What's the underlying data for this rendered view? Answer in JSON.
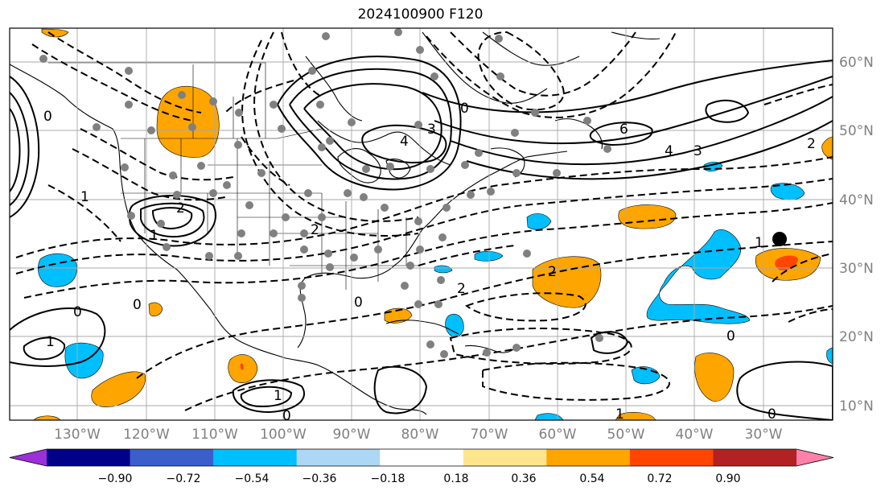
{
  "title": "2024100900 F120",
  "map": {
    "lon_labels": [
      "130°W",
      "120°W",
      "110°W",
      "100°W",
      "90°W",
      "80°W",
      "70°W",
      "60°W",
      "50°W",
      "40°W",
      "30°W"
    ],
    "lat_labels": [
      "60°N",
      "50°N",
      "40°N",
      "30°N",
      "20°N",
      "10°N"
    ],
    "contour_labels": [
      "4",
      "3",
      "2",
      "1",
      "0",
      "6",
      "4",
      "3",
      "0",
      "2",
      "1",
      "0",
      "2",
      "1",
      "0",
      "2",
      "1",
      "0",
      "0",
      "1",
      "2",
      "1",
      "0",
      "0"
    ],
    "marker": "storm-center-dot"
  },
  "colorbar": {
    "ticks": [
      "−0.90",
      "−0.72",
      "−0.54",
      "−0.36",
      "−0.18",
      "0.18",
      "0.36",
      "0.54",
      "0.72",
      "0.90"
    ],
    "colors": [
      "#9b30d9",
      "#00008b",
      "#3a5fcd",
      "#00bfff",
      "#add8f5",
      "#ffffff",
      "#ffe68c",
      "#ffa500",
      "#ff4500",
      "#b22222",
      "#ff80aa"
    ]
  }
}
